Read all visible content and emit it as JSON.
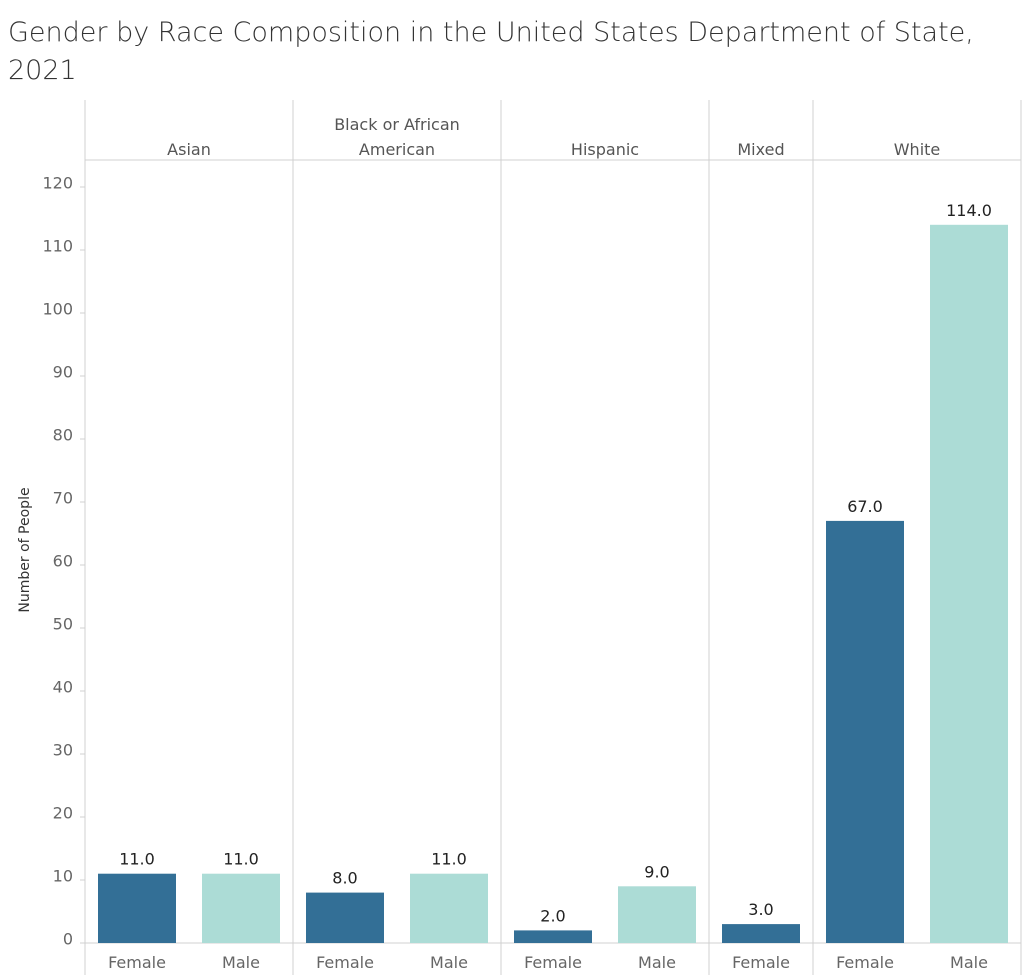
{
  "chart_data": {
    "type": "bar",
    "title": "Gender by Race Composition in the United States Department of State, 2021",
    "ylabel": "Number of People",
    "ylim": [
      0,
      125
    ],
    "yticks": [
      0,
      10,
      20,
      30,
      40,
      50,
      60,
      70,
      80,
      90,
      100,
      110,
      120
    ],
    "grid": false,
    "colors": {
      "Female": "#336f96",
      "Male": "#acdcd6"
    },
    "groups": [
      {
        "label": [
          "Asian"
        ],
        "bars": [
          {
            "gender": "Female",
            "value": 11.0,
            "label": "11.0"
          },
          {
            "gender": "Male",
            "value": 11.0,
            "label": "11.0"
          }
        ]
      },
      {
        "label": [
          "Black or African",
          "American"
        ],
        "bars": [
          {
            "gender": "Female",
            "value": 8.0,
            "label": "8.0"
          },
          {
            "gender": "Male",
            "value": 11.0,
            "label": "11.0"
          }
        ]
      },
      {
        "label": [
          "Hispanic"
        ],
        "bars": [
          {
            "gender": "Female",
            "value": 2.0,
            "label": "2.0"
          },
          {
            "gender": "Male",
            "value": 9.0,
            "label": "9.0"
          }
        ]
      },
      {
        "label": [
          "Mixed"
        ],
        "bars": [
          {
            "gender": "Female",
            "value": 3.0,
            "label": "3.0"
          }
        ]
      },
      {
        "label": [
          "White"
        ],
        "bars": [
          {
            "gender": "Female",
            "value": 67.0,
            "label": "67.0"
          },
          {
            "gender": "Male",
            "value": 114.0,
            "label": "114.0"
          }
        ]
      }
    ]
  }
}
